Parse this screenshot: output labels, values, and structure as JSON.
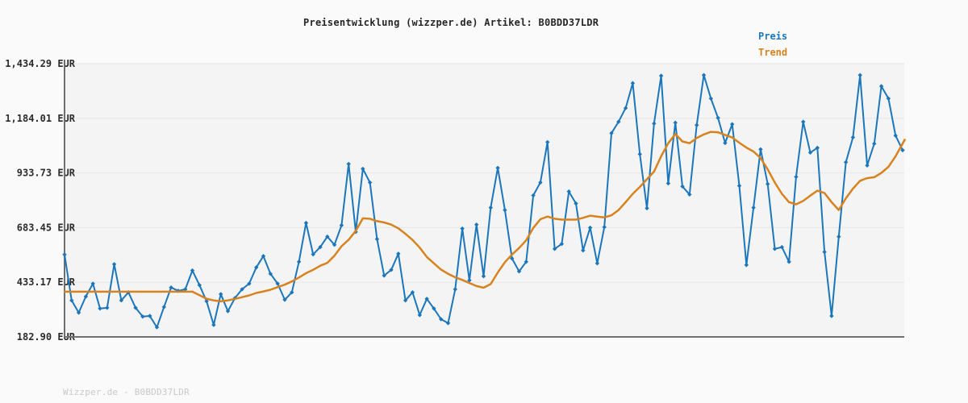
{
  "header": {
    "title": "Preisentwicklung (wizzper.de) Artikel: B0BDD37LDR"
  },
  "legend": {
    "items": [
      {
        "label": "Preis",
        "color": "#1b76bc"
      },
      {
        "label": "Trend",
        "color": "#d8821e"
      }
    ]
  },
  "footer": {
    "watermark": "Wizzper.de - B0BDD37LDR"
  },
  "colors": {
    "page_background": "#fafafa",
    "plot_background": "#f4f4f4",
    "gridline": "#e6e6e6",
    "axis": "#6f6f6f",
    "label_text": "#2b2b2b",
    "preis_line": "#1b76bc",
    "trend_line": "#d8821e"
  },
  "chart_data": {
    "type": "line",
    "title": "Preisentwicklung (wizzper.de) Artikel: B0BDD37LDR",
    "xlabel": "",
    "ylabel": "EUR",
    "x_tick_labels": [],
    "grid": true,
    "legend_position": "top-right",
    "ylim": [
      182.9,
      1434.29
    ],
    "y_ticks": [
      {
        "label": "1,434.29 EUR",
        "value": 1434.29
      },
      {
        "label": "1,184.01 EUR",
        "value": 1184.01
      },
      {
        "label": "933.73 EUR",
        "value": 933.73
      },
      {
        "label": "683.45 EUR",
        "value": 683.45
      },
      {
        "label": "433.17 EUR",
        "value": 433.17
      },
      {
        "label": "182.90 EUR",
        "value": 182.9
      }
    ],
    "series": [
      {
        "name": "Preis",
        "style": "line-with-diamond-markers",
        "color": "#1b76bc",
        "values": [
          560,
          350,
          294,
          368,
          427,
          313,
          316,
          516,
          350,
          387,
          316,
          276,
          279,
          227,
          320,
          409,
          394,
          401,
          487,
          420,
          346,
          238,
          379,
          301,
          361,
          401,
          427,
          501,
          553,
          472,
          427,
          353,
          387,
          527,
          705,
          561,
          594,
          642,
          605,
          694,
          975,
          664,
          953,
          890,
          631,
          464,
          490,
          564,
          350,
          387,
          283,
          357,
          313,
          264,
          246,
          401,
          679,
          442,
          697,
          461,
          775,
          957,
          764,
          542,
          483,
          527,
          831,
          890,
          1075,
          586,
          609,
          849,
          794,
          579,
          683,
          520,
          686,
          1116,
          1168,
          1231,
          1345,
          1020,
          772,
          1160,
          1379,
          886,
          1164,
          872,
          835,
          1153,
          1382,
          1275,
          1186,
          1071,
          1157,
          875,
          512,
          775,
          1042,
          883,
          586,
          594,
          527,
          916,
          1168,
          1027,
          1049,
          572,
          279,
          642,
          983,
          1097,
          1382,
          968,
          1068,
          1331,
          1275,
          1105,
          1038
        ]
      },
      {
        "name": "Trend",
        "style": "smooth-line",
        "color": "#d8821e",
        "points": [
          [
            0,
            390
          ],
          [
            18,
            390
          ],
          [
            19,
            374
          ],
          [
            20,
            358
          ],
          [
            21,
            350
          ],
          [
            22,
            346
          ],
          [
            23,
            350
          ],
          [
            24,
            357
          ],
          [
            25,
            365
          ],
          [
            26,
            373
          ],
          [
            27,
            384
          ],
          [
            28,
            391
          ],
          [
            29,
            399
          ],
          [
            30,
            411
          ],
          [
            31,
            422
          ],
          [
            32,
            437
          ],
          [
            33,
            455
          ],
          [
            34,
            475
          ],
          [
            35,
            490
          ],
          [
            36,
            509
          ],
          [
            37,
            522
          ],
          [
            38,
            555
          ],
          [
            39,
            598
          ],
          [
            40,
            628
          ],
          [
            41,
            668
          ],
          [
            42,
            726
          ],
          [
            43,
            724
          ],
          [
            44,
            713
          ],
          [
            45,
            707
          ],
          [
            46,
            697
          ],
          [
            47,
            680
          ],
          [
            48,
            655
          ],
          [
            49,
            627
          ],
          [
            50,
            592
          ],
          [
            51,
            549
          ],
          [
            52,
            520
          ],
          [
            53,
            491
          ],
          [
            54,
            472
          ],
          [
            55,
            456
          ],
          [
            56,
            444
          ],
          [
            57,
            430
          ],
          [
            58,
            416
          ],
          [
            59,
            408
          ],
          [
            60,
            425
          ],
          [
            61,
            478
          ],
          [
            62,
            525
          ],
          [
            63,
            560
          ],
          [
            64,
            590
          ],
          [
            65,
            625
          ],
          [
            66,
            682
          ],
          [
            67,
            722
          ],
          [
            68,
            734
          ],
          [
            69,
            724
          ],
          [
            70,
            720
          ],
          [
            71,
            720
          ],
          [
            72,
            720
          ],
          [
            73,
            728
          ],
          [
            74,
            738
          ],
          [
            75,
            734
          ],
          [
            76,
            730
          ],
          [
            77,
            740
          ],
          [
            78,
            764
          ],
          [
            79,
            800
          ],
          [
            80,
            838
          ],
          [
            81,
            870
          ],
          [
            82,
            905
          ],
          [
            83,
            940
          ],
          [
            84,
            1010
          ],
          [
            85,
            1070
          ],
          [
            86,
            1112
          ],
          [
            87,
            1078
          ],
          [
            88,
            1070
          ],
          [
            89,
            1094
          ],
          [
            90,
            1110
          ],
          [
            91,
            1122
          ],
          [
            92,
            1120
          ],
          [
            93,
            1108
          ],
          [
            94,
            1096
          ],
          [
            95,
            1072
          ],
          [
            96,
            1050
          ],
          [
            97,
            1032
          ],
          [
            98,
            1002
          ],
          [
            99,
            950
          ],
          [
            100,
            890
          ],
          [
            101,
            838
          ],
          [
            102,
            800
          ],
          [
            103,
            790
          ],
          [
            104,
            806
          ],
          [
            105,
            830
          ],
          [
            106,
            853
          ],
          [
            107,
            842
          ],
          [
            108,
            800
          ],
          [
            109,
            764
          ],
          [
            110,
            818
          ],
          [
            111,
            862
          ],
          [
            112,
            898
          ],
          [
            113,
            910
          ],
          [
            114,
            914
          ],
          [
            115,
            934
          ],
          [
            116,
            962
          ],
          [
            117,
            1010
          ],
          [
            118.3,
            1086
          ]
        ]
      }
    ]
  }
}
